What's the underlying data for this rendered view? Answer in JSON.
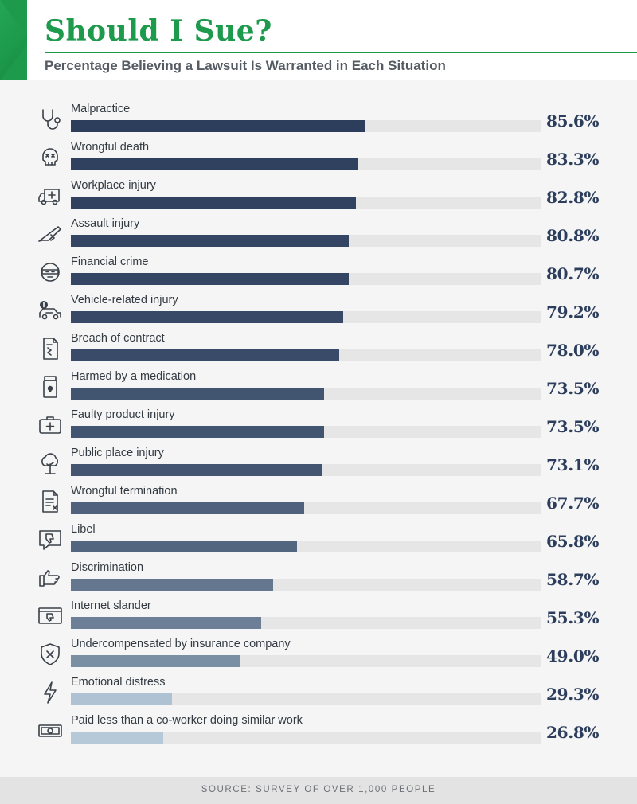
{
  "header": {
    "title": "Should I Sue?",
    "subtitle": "Percentage Believing a Lawsuit Is Warranted in Each Situation"
  },
  "colors": {
    "accent_green": "#1d9a4c",
    "bar_dark": "#2c3e5c",
    "bar_light": "#b5c9d9",
    "track": "#e6e6e6",
    "value_text": "#2c3e5c"
  },
  "chart_data": {
    "type": "bar",
    "orientation": "horizontal",
    "title": "Should I Sue?",
    "subtitle": "Percentage Believing a Lawsuit Is Warranted in Each Situation",
    "xlim": [
      0,
      100
    ],
    "unit": "%",
    "grid": false,
    "legend": "none",
    "categories": [
      "Malpractice",
      "Wrongful death",
      "Workplace injury",
      "Assault injury",
      "Financial crime",
      "Vehicle-related injury",
      "Breach of contract",
      "Harmed by a medication",
      "Faulty product injury",
      "Public place injury",
      "Wrongful termination",
      "Libel",
      "Discrimination",
      "Internet slander",
      "Undercompensated by insurance company",
      "Emotional distress",
      "Paid less than a co-worker doing similar work"
    ],
    "values": [
      85.6,
      83.3,
      82.8,
      80.8,
      80.7,
      79.2,
      78.0,
      73.5,
      73.5,
      73.1,
      67.7,
      65.8,
      58.7,
      55.3,
      49.0,
      29.3,
      26.8
    ],
    "value_labels": [
      "85.6%",
      "83.3%",
      "82.8%",
      "80.8%",
      "80.7%",
      "79.2%",
      "78.0%",
      "73.5%",
      "73.5%",
      "73.1%",
      "67.7%",
      "65.8%",
      "58.7%",
      "55.3%",
      "49.0%",
      "29.3%",
      "26.8%"
    ],
    "icons": [
      "stethoscope-icon",
      "skull-icon",
      "ambulance-icon",
      "knife-icon",
      "masked-robber-icon",
      "car-warning-icon",
      "contract-icon",
      "medicine-bottle-icon",
      "first-aid-kit-icon",
      "tree-icon",
      "document-x-icon",
      "speech-thumbs-down-icon",
      "pointing-hand-icon",
      "screen-thumbs-down-icon",
      "shield-x-icon",
      "lightning-icon",
      "money-bill-icon"
    ]
  },
  "footer": {
    "source": "SOURCE: SURVEY OF OVER 1,000 PEOPLE"
  }
}
